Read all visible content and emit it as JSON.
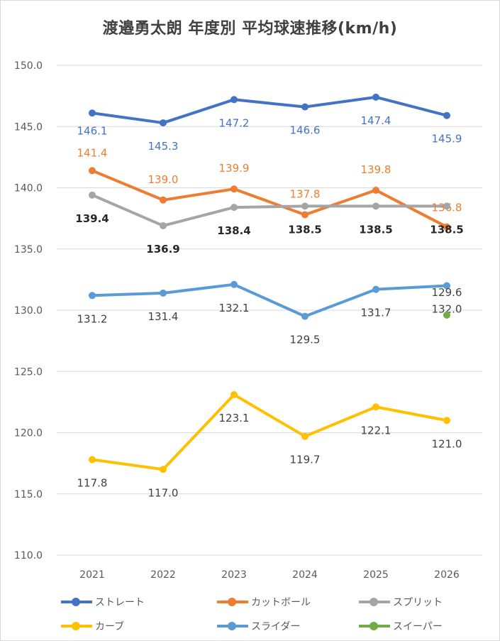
{
  "chart_data": {
    "type": "line",
    "title": "渡邉勇太朗 年度別 平均球速推移(km/h)",
    "categories": [
      "2021",
      "2022",
      "2023",
      "2024",
      "2025",
      "2026"
    ],
    "ylim": [
      110.0,
      150.0
    ],
    "yticks": [
      "110.0",
      "115.0",
      "120.0",
      "125.0",
      "130.0",
      "135.0",
      "140.0",
      "145.0",
      "150.0"
    ],
    "ytick_values": [
      110,
      115,
      120,
      125,
      130,
      135,
      140,
      145,
      150
    ],
    "grid": true,
    "legend_position": "bottom",
    "series": [
      {
        "name": "ストレート",
        "color": "#4472c4",
        "values": [
          146.1,
          145.3,
          147.2,
          146.6,
          147.4,
          145.9
        ],
        "labels": [
          "146.1",
          "145.3",
          "147.2",
          "146.6",
          "147.4",
          "145.9"
        ],
        "label_color": "#4472c4"
      },
      {
        "name": "カットボール",
        "color": "#ed7d31",
        "values": [
          141.4,
          139.0,
          139.9,
          137.8,
          139.8,
          136.8
        ],
        "labels": [
          "141.4",
          "139.0",
          "139.9",
          "137.8",
          "139.8",
          "136.8"
        ],
        "label_color": "#ed7d31"
      },
      {
        "name": "スプリット",
        "color": "#a5a5a5",
        "values": [
          139.4,
          136.9,
          138.4,
          138.5,
          138.5,
          138.5
        ],
        "labels": [
          "139.4",
          "136.9",
          "138.4",
          "138.5",
          "138.5",
          "138.5"
        ],
        "label_color": "#262626"
      },
      {
        "name": "カーブ",
        "color": "#ffc000",
        "values": [
          117.8,
          117.0,
          123.1,
          119.7,
          122.1,
          121.0
        ],
        "labels": [
          "117.8",
          "117.0",
          "123.1",
          "119.7",
          "122.1",
          "121.0"
        ],
        "label_color": "#404040"
      },
      {
        "name": "スライダー",
        "color": "#5b9bd5",
        "values": [
          131.2,
          131.4,
          132.1,
          129.5,
          131.7,
          132.0
        ],
        "labels": [
          "131.2",
          "131.4",
          "132.1",
          "129.5",
          "131.7",
          "132.0"
        ],
        "label_color": "#404040"
      },
      {
        "name": "スイーパー",
        "color": "#70ad47",
        "values": [
          null,
          null,
          null,
          null,
          null,
          129.6
        ],
        "labels": [
          "",
          "",
          "",
          "",
          "",
          "129.6"
        ],
        "label_color": "#404040"
      }
    ]
  }
}
